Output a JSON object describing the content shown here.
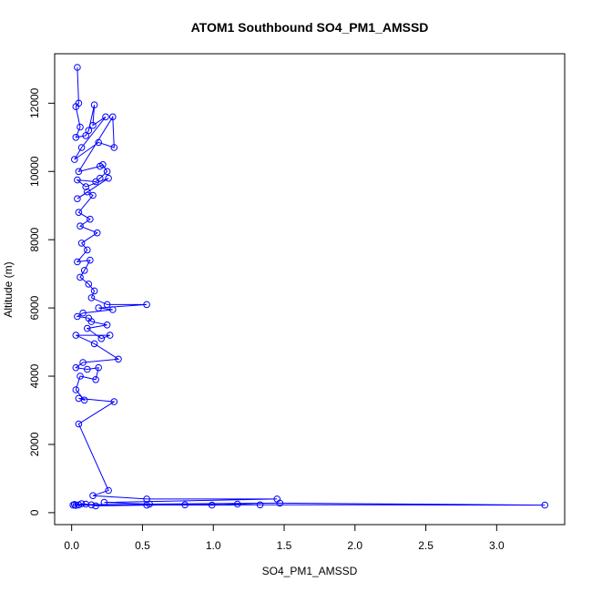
{
  "chart_data": {
    "type": "line",
    "title": "ATOM1 Southbound SO4_PM1_AMSSD",
    "xlabel": "SO4_PM1_AMSSD",
    "ylabel": "Altitude (m)",
    "xlim": [
      -0.12,
      3.48
    ],
    "ylim": [
      -350,
      13450
    ],
    "xticks": [
      0.0,
      0.5,
      1.0,
      1.5,
      2.0,
      2.5,
      3.0
    ],
    "xtick_labels": [
      "0.0",
      "0.5",
      "1.0",
      "1.5",
      "2.0",
      "2.5",
      "3.0"
    ],
    "yticks": [
      0,
      2000,
      4000,
      6000,
      8000,
      10000,
      12000
    ],
    "ytick_labels": [
      "0",
      "2000",
      "4000",
      "6000",
      "8000",
      "10000",
      "12000"
    ],
    "grid": false,
    "series": [
      {
        "color": "#0000ff",
        "marker": "open-circle",
        "points": [
          [
            0.04,
            13050
          ],
          [
            0.05,
            12000
          ],
          [
            0.03,
            11900
          ],
          [
            0.06,
            11300
          ],
          [
            0.03,
            11000
          ],
          [
            0.1,
            11050
          ],
          [
            0.12,
            11200
          ],
          [
            0.16,
            11950
          ],
          [
            0.15,
            11350
          ],
          [
            0.24,
            11600
          ],
          [
            0.07,
            10700
          ],
          [
            0.02,
            10350
          ],
          [
            0.19,
            10850
          ],
          [
            0.3,
            10700
          ],
          [
            0.29,
            11600
          ],
          [
            0.05,
            10000
          ],
          [
            0.2,
            10150
          ],
          [
            0.22,
            10200
          ],
          [
            0.25,
            10000
          ],
          [
            0.2,
            9800
          ],
          [
            0.17,
            9700
          ],
          [
            0.04,
            9750
          ],
          [
            0.1,
            9550
          ],
          [
            0.26,
            9800
          ],
          [
            0.04,
            9200
          ],
          [
            0.11,
            9400
          ],
          [
            0.15,
            9300
          ],
          [
            0.05,
            8800
          ],
          [
            0.13,
            8600
          ],
          [
            0.06,
            8400
          ],
          [
            0.18,
            8200
          ],
          [
            0.07,
            7900
          ],
          [
            0.11,
            7700
          ],
          [
            0.04,
            7350
          ],
          [
            0.13,
            7400
          ],
          [
            0.09,
            7100
          ],
          [
            0.06,
            6900
          ],
          [
            0.12,
            6700
          ],
          [
            0.16,
            6500
          ],
          [
            0.14,
            6300
          ],
          [
            0.25,
            6100
          ],
          [
            0.53,
            6100
          ],
          [
            0.19,
            6000
          ],
          [
            0.29,
            5950
          ],
          [
            0.08,
            5850
          ],
          [
            0.04,
            5750
          ],
          [
            0.12,
            5700
          ],
          [
            0.14,
            5600
          ],
          [
            0.25,
            5500
          ],
          [
            0.11,
            5400
          ],
          [
            0.21,
            5100
          ],
          [
            0.27,
            5200
          ],
          [
            0.03,
            5200
          ],
          [
            0.16,
            4950
          ],
          [
            0.33,
            4500
          ],
          [
            0.08,
            4400
          ],
          [
            0.03,
            4250
          ],
          [
            0.11,
            4200
          ],
          [
            0.19,
            4250
          ],
          [
            0.17,
            3900
          ],
          [
            0.06,
            4000
          ],
          [
            0.03,
            3600
          ],
          [
            0.09,
            3300
          ],
          [
            0.05,
            3350
          ],
          [
            0.3,
            3250
          ],
          [
            0.05,
            2600
          ],
          [
            0.26,
            650
          ],
          [
            0.15,
            500
          ],
          [
            0.53,
            400
          ],
          [
            1.45,
            400
          ],
          [
            0.23,
            300
          ],
          [
            0.55,
            250
          ],
          [
            1.47,
            280
          ],
          [
            3.34,
            220
          ],
          [
            0.02,
            240
          ],
          [
            0.05,
            230
          ],
          [
            0.07,
            260
          ],
          [
            0.1,
            250
          ],
          [
            0.14,
            230
          ],
          [
            0.17,
            200
          ],
          [
            0.53,
            220
          ],
          [
            0.8,
            230
          ],
          [
            0.99,
            220
          ],
          [
            1.17,
            250
          ],
          [
            1.33,
            230
          ],
          [
            0.01,
            220
          ],
          [
            0.03,
            210
          ]
        ]
      }
    ]
  }
}
